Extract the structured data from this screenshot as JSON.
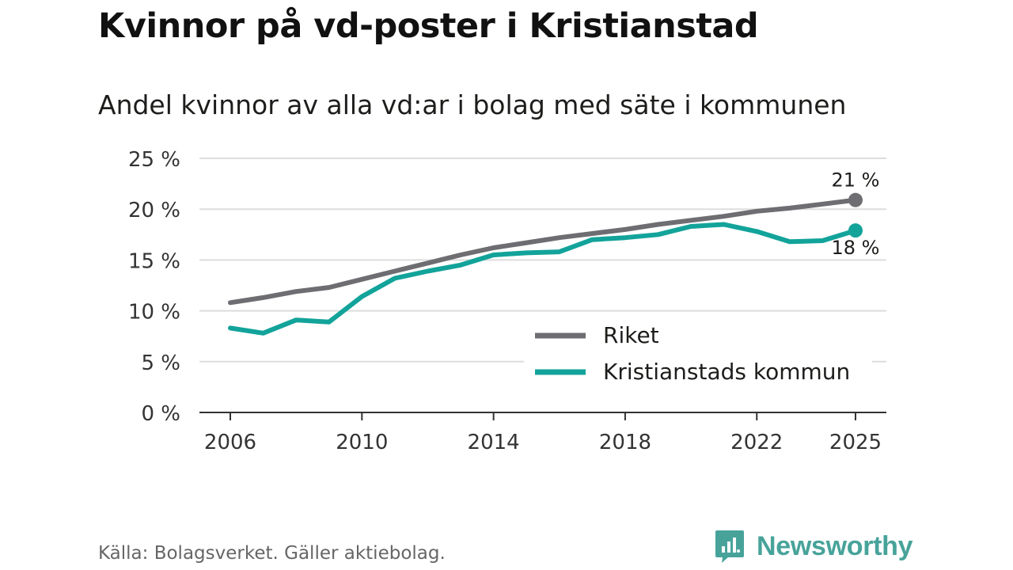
{
  "title": "Kvinnor på vd-poster i Kristianstad",
  "subtitle": "Andel kvinnor av alla vd:ar i bolag med säte i kommunen",
  "source": "Källa: Bolagsverket. Gäller aktiebolag.",
  "brand": "Newsworthy",
  "colors": {
    "riket": "#6d6d72",
    "kommun": "#12a39a",
    "grid": "#dddddd",
    "axis": "#333333",
    "brand": "#47a39a"
  },
  "chart_data": {
    "type": "line",
    "title": "Kvinnor på vd-poster i Kristianstad",
    "subtitle": "Andel kvinnor av alla vd:ar i bolag med säte i kommunen",
    "x": [
      2006,
      2007,
      2008,
      2009,
      2010,
      2011,
      2012,
      2013,
      2014,
      2015,
      2016,
      2017,
      2018,
      2019,
      2020,
      2021,
      2022,
      2023,
      2024,
      2025
    ],
    "xlim": [
      2006,
      2025
    ],
    "ylim": [
      0,
      25
    ],
    "x_ticks": [
      {
        "value": 2006,
        "label": "2006"
      },
      {
        "value": 2010,
        "label": "2010"
      },
      {
        "value": 2014,
        "label": "2014"
      },
      {
        "value": 2018,
        "label": "2018"
      },
      {
        "value": 2022,
        "label": "2022"
      },
      {
        "value": 2025,
        "label": "2025"
      }
    ],
    "y_ticks": [
      {
        "value": 0,
        "label": "0 %"
      },
      {
        "value": 5,
        "label": "5 %"
      },
      {
        "value": 10,
        "label": "10 %"
      },
      {
        "value": 15,
        "label": "15 %"
      },
      {
        "value": 20,
        "label": "20 %"
      },
      {
        "value": 25,
        "label": "25 %"
      }
    ],
    "grid": true,
    "legend_position": "bottom-right",
    "series": [
      {
        "name": "Riket",
        "color": "#6d6d72",
        "values": [
          10.8,
          11.3,
          11.9,
          12.3,
          13.1,
          13.9,
          14.7,
          15.5,
          16.2,
          16.7,
          17.2,
          17.6,
          18.0,
          18.5,
          18.9,
          19.3,
          19.8,
          20.1,
          20.5,
          20.9
        ],
        "end_label": "21 %"
      },
      {
        "name": "Kristianstads kommun",
        "color": "#12a39a",
        "values": [
          8.3,
          7.8,
          9.1,
          8.9,
          11.4,
          13.2,
          13.9,
          14.5,
          15.5,
          15.7,
          15.8,
          17.0,
          17.2,
          17.5,
          18.3,
          18.5,
          17.8,
          16.8,
          16.9,
          17.9
        ],
        "end_label": "18 %"
      }
    ]
  }
}
